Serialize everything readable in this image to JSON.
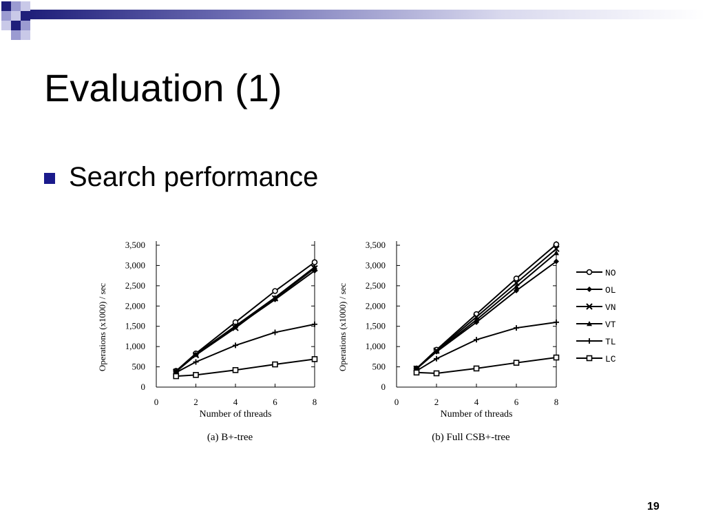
{
  "slide": {
    "title": "Evaluation (1)",
    "bullet": "Search performance",
    "page_number": "19"
  },
  "colors": {
    "accent": "#1a1a8c",
    "decor_light": "#9b9bd1",
    "decor_dark": "#1f1f7a",
    "line": "#000000"
  },
  "chart_data": [
    {
      "type": "line",
      "caption": "(a) B+-tree",
      "xlabel": "Number of threads",
      "ylabel": "Operations (x1000) / sec",
      "x_ticks": [
        0,
        2,
        4,
        6,
        8
      ],
      "x_tick_labels": [
        "0",
        "2",
        "4",
        "6",
        "8"
      ],
      "y_ticks": [
        0,
        500,
        1000,
        1500,
        2000,
        2500,
        3000,
        3500
      ],
      "y_tick_labels": [
        "0",
        "500",
        "1,000",
        "1,500",
        "2,000",
        "2,500",
        "3,000",
        "3,500"
      ],
      "xlim": [
        0,
        8
      ],
      "ylim": [
        0,
        3500
      ],
      "x": [
        1,
        2,
        4,
        6,
        8
      ],
      "series": [
        {
          "name": "NO",
          "marker": "circle",
          "values": [
            400,
            830,
            1600,
            2370,
            3080
          ]
        },
        {
          "name": "OL",
          "marker": "diamond",
          "values": [
            390,
            800,
            1480,
            2160,
            2870
          ]
        },
        {
          "name": "VN",
          "marker": "x",
          "values": [
            380,
            790,
            1460,
            2190,
            2930
          ]
        },
        {
          "name": "VT",
          "marker": "triangle",
          "values": [
            385,
            810,
            1510,
            2210,
            2960
          ]
        },
        {
          "name": "TL",
          "marker": "plus",
          "values": [
            360,
            620,
            1030,
            1350,
            1550
          ]
        },
        {
          "name": "LC",
          "marker": "square",
          "values": [
            270,
            300,
            420,
            560,
            690
          ]
        }
      ]
    },
    {
      "type": "line",
      "caption": "(b) Full CSB+-tree",
      "xlabel": "Number of threads",
      "ylabel": "Operations (x1000) / sec",
      "x_ticks": [
        0,
        2,
        4,
        6,
        8
      ],
      "x_tick_labels": [
        "0",
        "2",
        "4",
        "6",
        "8"
      ],
      "y_ticks": [
        0,
        500,
        1000,
        1500,
        2000,
        2500,
        3000,
        3500
      ],
      "y_tick_labels": [
        "0",
        "500",
        "1,000",
        "1,500",
        "2,000",
        "2,500",
        "3,000",
        "3,500"
      ],
      "xlim": [
        0,
        8
      ],
      "ylim": [
        0,
        3500
      ],
      "x": [
        1,
        2,
        4,
        6,
        8
      ],
      "series": [
        {
          "name": "NO",
          "marker": "circle",
          "values": [
            460,
            920,
            1800,
            2680,
            3520
          ]
        },
        {
          "name": "OL",
          "marker": "diamond",
          "values": [
            450,
            870,
            1600,
            2380,
            3100
          ]
        },
        {
          "name": "VN",
          "marker": "x",
          "values": [
            455,
            900,
            1730,
            2570,
            3410
          ]
        },
        {
          "name": "VT",
          "marker": "triangle",
          "values": [
            450,
            880,
            1660,
            2480,
            3310
          ]
        },
        {
          "name": "TL",
          "marker": "plus",
          "values": [
            400,
            700,
            1170,
            1460,
            1600
          ]
        },
        {
          "name": "LC",
          "marker": "square",
          "values": [
            360,
            340,
            460,
            600,
            730
          ]
        }
      ]
    }
  ]
}
